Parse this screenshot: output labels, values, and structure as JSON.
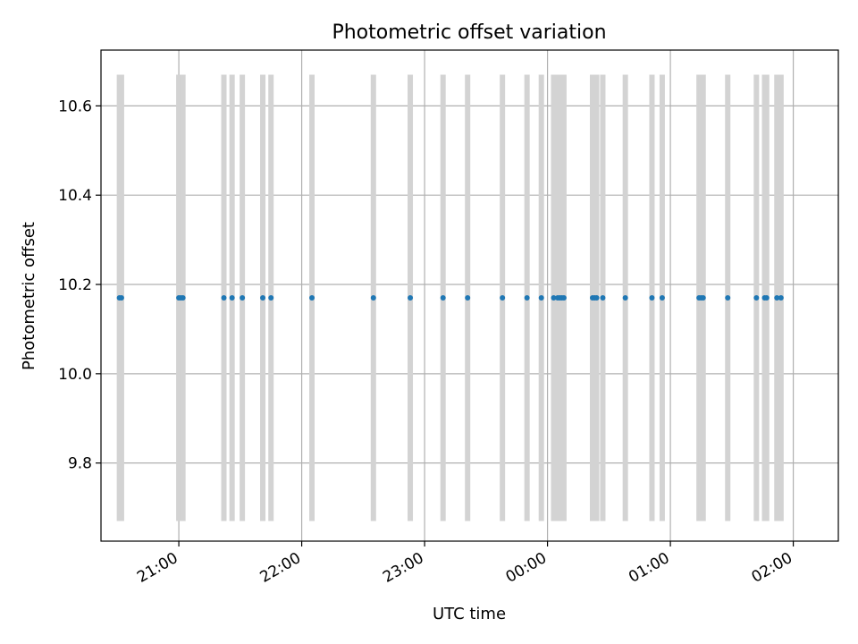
{
  "chart_data": {
    "type": "scatter",
    "title": "Photometric offset variation",
    "xlabel": "UTC time",
    "ylabel": "Photometric offset",
    "x_axis": {
      "kind": "time",
      "range": [
        "20:22",
        "02:22"
      ],
      "ticks": [
        "21:00",
        "22:00",
        "23:00",
        "00:00",
        "01:00",
        "02:00"
      ],
      "tick_times": [
        "21:00",
        "22:00",
        "23:00",
        "24:00",
        "25:00",
        "26:00"
      ],
      "tick_rotation": "30deg"
    },
    "y_axis": {
      "range": [
        9.625,
        10.725
      ],
      "ticks": [
        "9.8",
        "10.0",
        "10.2",
        "10.4",
        "10.6"
      ],
      "tick_values": [
        9.8,
        10.0,
        10.2,
        10.4,
        10.6
      ]
    },
    "grid": true,
    "marker_color": "#1f77b4",
    "errorbar_color": "#d3d3d3",
    "series": [
      {
        "y_value": 10.17,
        "error_range": [
          9.67,
          10.67
        ],
        "times": [
          "20:31",
          "20:32",
          "21:00",
          "21:01",
          "21:02",
          "21:22",
          "21:26",
          "21:31",
          "21:41",
          "21:45",
          "22:05",
          "22:35",
          "22:53",
          "23:09",
          "23:21",
          "23:38",
          "23:50",
          "23:57",
          "24:03",
          "24:05",
          "24:06",
          "24:07",
          "24:08",
          "24:22",
          "24:23",
          "24:24",
          "24:27",
          "24:38",
          "24:51",
          "24:56",
          "25:14",
          "25:15",
          "25:16",
          "25:28",
          "25:42",
          "25:46",
          "25:47",
          "25:52",
          "25:54"
        ]
      }
    ]
  }
}
